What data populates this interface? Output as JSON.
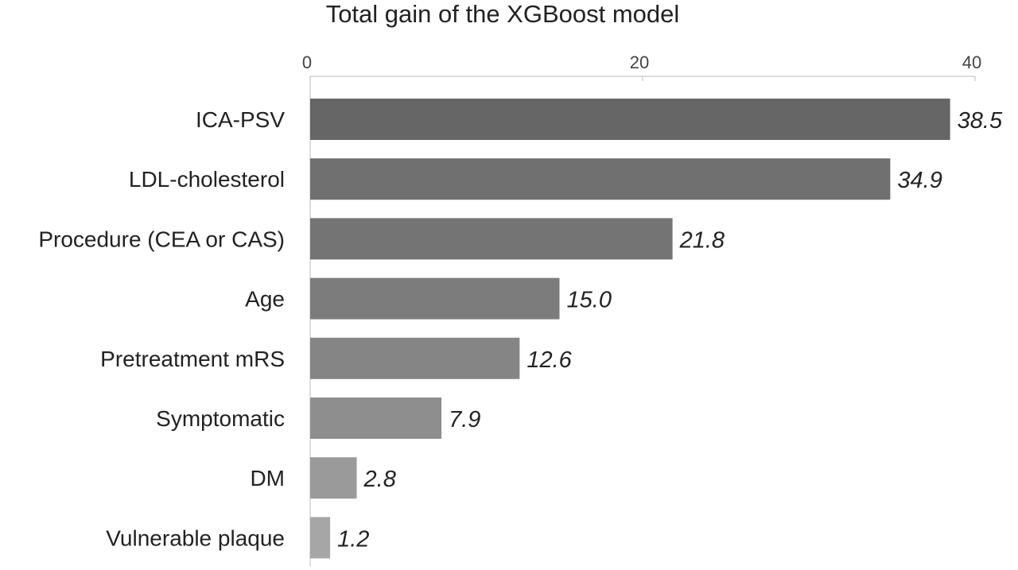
{
  "chart_data": {
    "type": "bar",
    "orientation": "horizontal",
    "title": "Total gain of the XGBoost model",
    "categories": [
      "ICA-PSV",
      "LDL-cholesterol",
      "Procedure (CEA or CAS)",
      "Age",
      "Pretreatment mRS",
      "Symptomatic",
      "DM",
      "Vulnerable plaque"
    ],
    "values": [
      38.5,
      34.9,
      21.8,
      15.0,
      12.6,
      7.9,
      2.8,
      1.2
    ],
    "value_labels": [
      "38.5",
      "34.9",
      "21.8",
      "15.0",
      "12.6",
      "7.9",
      "2.8",
      "1.2"
    ],
    "xlim": [
      0,
      40
    ],
    "xticks": [
      "0",
      "20",
      "40"
    ],
    "xaxis_position": "top",
    "grid": false,
    "legend": "none",
    "bar_colors": [
      "#666666",
      "#707070",
      "#747474",
      "#7c7c7c",
      "#858585",
      "#8e8e8e",
      "#9a9a9a",
      "#a6a6a6"
    ]
  }
}
